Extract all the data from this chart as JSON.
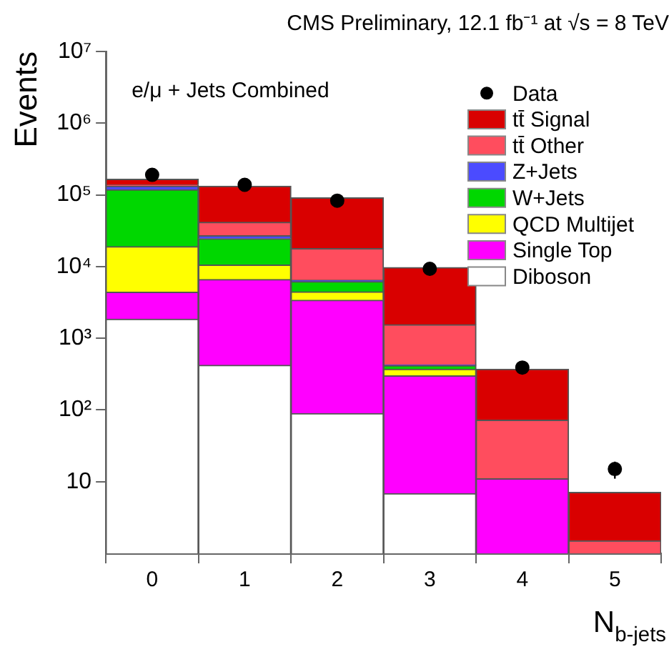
{
  "chart_data": {
    "type": "bar",
    "x": [
      0,
      1,
      2,
      3,
      4,
      5
    ],
    "title": "CMS Preliminary, 12.1 fb⁻¹ at √s = 8 TeV",
    "xlabel": "N$_{b-jets}$",
    "ylabel": "Events",
    "annotations": [
      "e/μ + Jets Combined"
    ],
    "stacked": true,
    "log": true,
    "legend": "top right",
    "xlim": [
      -0.5,
      5.5
    ],
    "xticks": [
      0,
      1,
      2,
      3,
      4,
      5
    ],
    "ylim": [
      1,
      10000000
    ],
    "yticks": [
      10,
      {
        "value": 100,
        "label": "10²"
      },
      {
        "value": 1000,
        "label": "10³"
      },
      {
        "value": 10000,
        "label": "10⁴"
      },
      {
        "value": 100000,
        "label": "10⁵"
      },
      {
        "value": 1000000,
        "label": "10⁶"
      },
      {
        "value": 10000000,
        "label": "10⁷"
      }
    ],
    "series": [
      {
        "name": "Diboson",
        "color": "#ffffff",
        "values": [
          1850,
          420,
          89,
          6.8,
          null,
          null
        ]
      },
      {
        "name": "Single Top",
        "color": "#ff00ff",
        "values": [
          2550,
          6180,
          3311,
          293,
          11,
          null
        ]
      },
      {
        "name": "QCD Multijet",
        "color": "#ffff00",
        "values": [
          14600,
          3900,
          1050,
          70,
          null,
          null
        ]
      },
      {
        "name": "W+Jets",
        "color": "#00d700",
        "values": [
          99000,
          14000,
          1700,
          45,
          null,
          null
        ]
      },
      {
        "name": "Z+Jets",
        "color": "#4b4bff",
        "values": [
          14000,
          2500,
          300,
          10,
          null,
          null
        ]
      },
      {
        "name": "tt̄ Other",
        "color": "#ff4d5e",
        "values": [
          5000,
          14500,
          11350,
          1125,
          61,
          1.5
        ]
      },
      {
        "name": "tt̄ Signal",
        "color": "#d90000",
        "values": [
          28000,
          90500,
          73200,
          8150,
          298,
          5.6
        ]
      },
      {
        "name": "Data",
        "type": "scatter",
        "color": "#000000",
        "x": [
          0,
          1,
          2,
          3,
          4,
          5
        ],
        "values": [
          190000,
          138000,
          83000,
          9300,
          390,
          15
        ],
        "errors": [
          null,
          null,
          null,
          null,
          null,
          4
        ],
        "marker": "circle"
      }
    ]
  }
}
